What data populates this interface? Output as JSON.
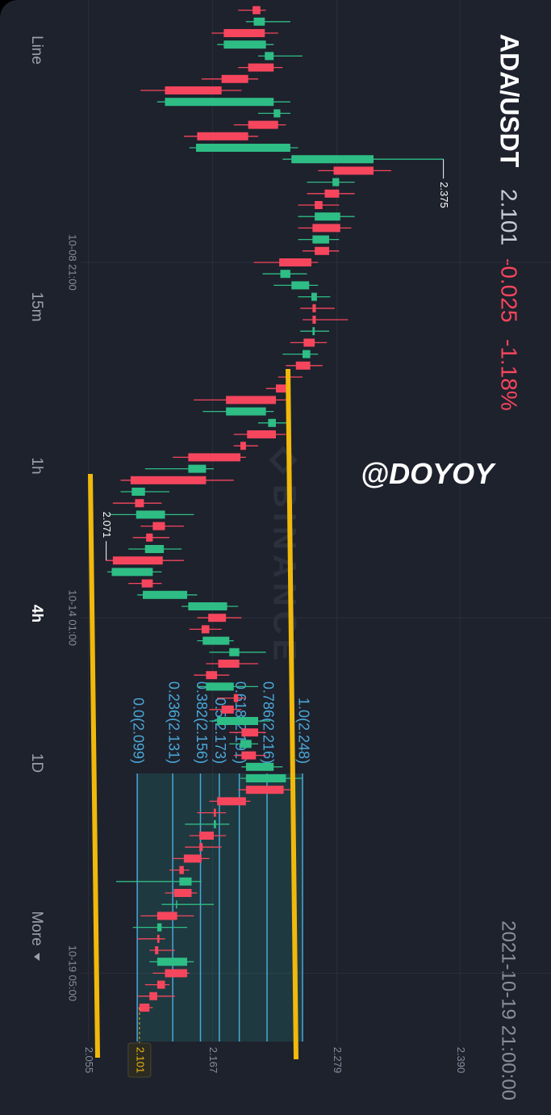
{
  "header": {
    "symbol": "ADA/USDT",
    "price": "2.101",
    "change": "-0.025",
    "change_pct": "-1.18%",
    "datetime": "2021-10-19 21:00:00"
  },
  "timeframes": [
    "Line",
    "15m",
    "1h",
    "4h",
    "1D",
    "More"
  ],
  "watermark": "BINANCE",
  "tag": "@DOYOY",
  "chart_data": {
    "type": "candlestick",
    "categories": [
      null,
      null,
      null,
      null,
      null,
      null,
      null,
      null,
      null,
      null,
      null,
      null,
      null,
      null,
      null,
      null,
      null,
      null,
      null,
      null,
      null,
      null,
      "10-08 21:00",
      null,
      null,
      null,
      null,
      null,
      null,
      null,
      null,
      null,
      null,
      null,
      null,
      null,
      null,
      null,
      null,
      null,
      null,
      null,
      null,
      null,
      null,
      null,
      null,
      null,
      null,
      null,
      null,
      null,
      null,
      "10-14 01:00",
      null,
      null,
      null,
      null,
      null,
      null,
      null,
      null,
      null,
      null,
      null,
      null,
      null,
      null,
      null,
      null,
      null,
      null,
      null,
      null,
      null,
      null,
      null,
      null,
      null,
      null,
      null,
      null,
      null,
      null,
      "10-19 05:00",
      null,
      null,
      null
    ],
    "open": [
      2.21,
      2.204,
      2.214,
      2.177,
      2.214,
      2.222,
      2.199,
      2.175,
      2.124,
      2.222,
      2.226,
      2.199,
      2.152,
      2.238,
      2.312,
      2.275,
      2.281,
      2.266,
      2.259,
      2.282,
      2.257,
      2.272,
      2.256,
      2.228,
      2.238,
      2.256,
      2.26,
      2.26,
      2.257,
      2.259,
      2.248,
      2.255,
      2.237,
      2.233,
      2.224,
      2.179,
      2.217,
      2.224,
      2.197,
      2.192,
      2.145,
      2.161,
      2.094,
      2.105,
      2.098,
      2.124,
      2.113,
      2.106,
      2.122,
      2.076,
      2.113,
      2.104,
      2.145,
      2.179,
      2.164,
      2.158,
      2.182,
      2.191,
      2.171,
      2.161,
      2.19,
      2.186,
      2.171,
      2.208,
      2.192,
      2.206,
      2.197,
      2.197,
      2.231,
      2.197,
      2.17,
      2.168,
      2.168,
      2.158,
      2.157,
      2.141,
      2.137,
      2.148,
      2.134,
      2.135,
      2.117,
      2.119,
      2.118,
      2.117,
      2.144,
      2.124,
      2.117,
      2.11
    ],
    "high": [
      2.215,
      2.237,
      2.226,
      2.222,
      2.248,
      2.23,
      2.208,
      2.193,
      2.237,
      2.237,
      2.233,
      2.208,
      2.244,
      2.375,
      2.328,
      2.295,
      2.295,
      2.281,
      2.295,
      2.292,
      2.281,
      2.281,
      2.262,
      2.252,
      2.262,
      2.273,
      2.277,
      2.289,
      2.272,
      2.27,
      2.262,
      2.266,
      2.248,
      2.237,
      2.237,
      2.222,
      2.237,
      2.233,
      2.208,
      2.197,
      2.168,
      2.186,
      2.128,
      2.121,
      2.15,
      2.141,
      2.128,
      2.139,
      2.141,
      2.121,
      2.121,
      2.153,
      2.19,
      2.193,
      2.175,
      2.186,
      2.215,
      2.208,
      2.182,
      2.208,
      2.197,
      2.193,
      2.219,
      2.215,
      2.208,
      2.215,
      2.23,
      2.248,
      2.237,
      2.201,
      2.179,
      2.182,
      2.179,
      2.175,
      2.164,
      2.146,
      2.157,
      2.153,
      2.168,
      2.15,
      2.144,
      2.124,
      2.133,
      2.15,
      2.146,
      2.128,
      2.133,
      2.113
    ],
    "low": [
      2.19,
      2.197,
      2.166,
      2.171,
      2.208,
      2.19,
      2.157,
      2.102,
      2.117,
      2.208,
      2.186,
      2.141,
      2.146,
      2.23,
      2.262,
      2.252,
      2.252,
      2.244,
      2.244,
      2.244,
      2.244,
      2.248,
      2.204,
      2.212,
      2.222,
      2.244,
      2.246,
      2.248,
      2.246,
      2.237,
      2.23,
      2.233,
      2.226,
      2.215,
      2.15,
      2.158,
      2.208,
      2.186,
      2.186,
      2.131,
      2.106,
      2.084,
      2.084,
      2.077,
      2.074,
      2.102,
      2.095,
      2.091,
      2.071,
      2.072,
      2.091,
      2.099,
      2.139,
      2.153,
      2.146,
      2.153,
      2.164,
      2.161,
      2.15,
      2.153,
      2.171,
      2.164,
      2.164,
      2.182,
      2.182,
      2.186,
      2.193,
      2.192,
      2.19,
      2.164,
      2.153,
      2.142,
      2.146,
      2.142,
      2.131,
      2.128,
      2.08,
      2.124,
      2.121,
      2.102,
      2.095,
      2.099,
      2.11,
      2.11,
      2.113,
      2.106,
      2.099,
      2.1
    ],
    "close": [
      2.203,
      2.214,
      2.177,
      2.215,
      2.222,
      2.199,
      2.175,
      2.124,
      2.222,
      2.228,
      2.199,
      2.153,
      2.237,
      2.312,
      2.276,
      2.281,
      2.268,
      2.259,
      2.282,
      2.257,
      2.272,
      2.259,
      2.227,
      2.237,
      2.254,
      2.261,
      2.257,
      2.257,
      2.259,
      2.249,
      2.255,
      2.242,
      2.235,
      2.224,
      2.179,
      2.215,
      2.224,
      2.198,
      2.192,
      2.145,
      2.161,
      2.093,
      2.106,
      2.097,
      2.124,
      2.113,
      2.107,
      2.123,
      2.077,
      2.113,
      2.103,
      2.144,
      2.18,
      2.163,
      2.157,
      2.182,
      2.191,
      2.172,
      2.161,
      2.186,
      2.186,
      2.175,
      2.208,
      2.193,
      2.202,
      2.193,
      2.222,
      2.233,
      2.197,
      2.171,
      2.168,
      2.17,
      2.155,
      2.155,
      2.141,
      2.137,
      2.148,
      2.132,
      2.135,
      2.117,
      2.121,
      2.117,
      2.115,
      2.144,
      2.124,
      2.117,
      2.11,
      2.101
    ],
    "up_color": "#2ebd85",
    "down_color": "#f6465d",
    "ylim": [
      2.048,
      2.472
    ],
    "yticks": [
      2.055,
      2.167,
      2.279,
      {
        "value": 2.39,
        "label": "2.390"
      }
    ],
    "grid": true,
    "last_price": 2.101,
    "high_label": 2.375,
    "low_label": 2.071,
    "fib_color": "#4aa8d8",
    "fib_levels": [
      {
        "value": 2.248,
        "label": "1.0(2.248)"
      },
      {
        "value": 2.216,
        "label": "0.786(2.216)"
      },
      {
        "value": 2.191,
        "label": "0.618(2.191)"
      },
      {
        "value": 2.173,
        "label": "0.5(2.173)"
      },
      {
        "value": 2.156,
        "label": "0.382(2.156)"
      },
      {
        "value": 2.131,
        "label": "0.236(2.131)"
      },
      {
        "value": 2.099,
        "label": "0.0(2.099)"
      }
    ]
  }
}
